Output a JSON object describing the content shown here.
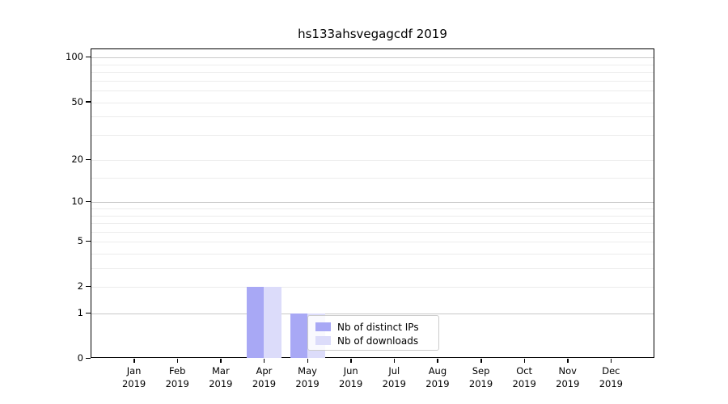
{
  "chart_data": {
    "type": "bar",
    "title": "hs133ahsvegagcdf 2019",
    "categories": [
      "Jan 2019",
      "Feb 2019",
      "Mar 2019",
      "Apr 2019",
      "May 2019",
      "Jun 2019",
      "Jul 2019",
      "Aug 2019",
      "Sep 2019",
      "Oct 2019",
      "Nov 2019",
      "Dec 2019"
    ],
    "series": [
      {
        "name": "Nb of distinct IPs",
        "color": "#a8a8f5",
        "values": [
          0,
          0,
          0,
          2,
          1,
          0,
          0,
          0,
          0,
          0,
          0,
          0
        ]
      },
      {
        "name": "Nb of downloads",
        "color": "#dcdcfa",
        "values": [
          0,
          0,
          0,
          2,
          1,
          0,
          0,
          0,
          0,
          0,
          0,
          0
        ]
      }
    ],
    "xlabel": "",
    "ylabel": "",
    "yscale": "log1p",
    "ytick_values": [
      0,
      1,
      2,
      5,
      10,
      20,
      50,
      100
    ],
    "ytick_labels": [
      "0",
      "1",
      "2",
      "5",
      "10",
      "20",
      "50",
      "100"
    ],
    "ylim": [
      0,
      114
    ],
    "grid": true,
    "grid_major_values": [
      1,
      10,
      100
    ],
    "grid_minor_values": [
      2,
      3,
      4,
      6,
      7,
      8,
      9,
      15,
      30,
      40,
      60,
      70,
      80,
      90
    ],
    "legend": {
      "position": "inside-bottom-center",
      "labels": [
        "Nb of distinct IPs",
        "Nb of downloads"
      ]
    }
  }
}
